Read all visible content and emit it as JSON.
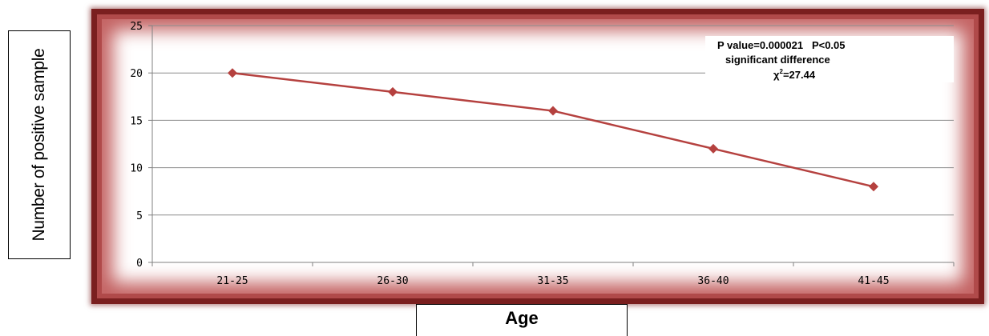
{
  "chart_data": {
    "type": "line",
    "categories": [
      "21-25",
      "26-30",
      "31-35",
      "36-40",
      "41-45"
    ],
    "series": [
      {
        "values": [
          20,
          18,
          16,
          12,
          8
        ],
        "color": "#b5413f"
      }
    ],
    "xlabel": "Age",
    "ylabel": "Number of positive sample",
    "ylim": [
      0,
      25
    ],
    "yticks": [
      0,
      5,
      10,
      15,
      20,
      25
    ],
    "grid": true,
    "annotation": {
      "line1": "P value=0.000021   P<0.05",
      "line2": "significant difference",
      "line3_prefix": "χ",
      "line3_sup": "2",
      "line3_rest": "=27.44"
    }
  },
  "colors": {
    "frame": "#7a1f1f",
    "line": "#b5413f",
    "grid": "#8c8c8c",
    "axis": "#808080"
  }
}
